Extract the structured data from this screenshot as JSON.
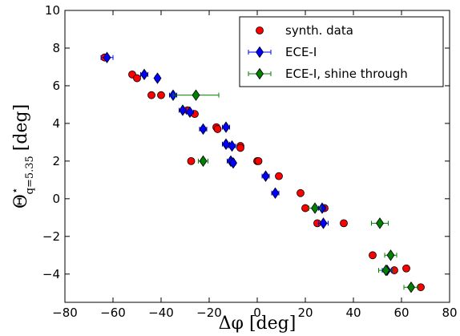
{
  "chart_data": {
    "type": "scatter",
    "xlabel": "Δφ [deg]",
    "ylabel": "Θ⋆ q=5.35 [deg]",
    "ylabel_main": "Θ",
    "ylabel_star": "⋆",
    "ylabel_sub": "q=5.35",
    "ylabel_unit": "[deg]",
    "xlim": [
      -80,
      80
    ],
    "ylim": [
      -5.5,
      10
    ],
    "xticks": [
      -80,
      -60,
      -40,
      -20,
      0,
      20,
      40,
      60,
      80
    ],
    "yticks": [
      -4,
      -2,
      0,
      2,
      4,
      6,
      8,
      10
    ],
    "xtick_labels": [
      "−80",
      "−60",
      "−40",
      "−20",
      "0",
      "20",
      "40",
      "60",
      "80"
    ],
    "ytick_labels": [
      "−4",
      "−2",
      "0",
      "2",
      "4",
      "6",
      "8",
      "10"
    ],
    "legend_position": "upper-right",
    "grid": false,
    "series": [
      {
        "name": "synth. data",
        "marker": "circle",
        "color": "#ff0000",
        "points": [
          [
            -63.5,
            7.5
          ],
          [
            -52,
            6.6
          ],
          [
            -50,
            6.4
          ],
          [
            -44,
            5.5
          ],
          [
            -40,
            5.5
          ],
          [
            -29,
            4.7
          ],
          [
            -26,
            4.5
          ],
          [
            -17,
            3.8
          ],
          [
            -16.5,
            3.7
          ],
          [
            -7,
            2.8
          ],
          [
            -7,
            2.7
          ],
          [
            0,
            2.0
          ],
          [
            0.5,
            2.0
          ],
          [
            -27.5,
            2.0
          ],
          [
            9,
            1.2
          ],
          [
            18,
            0.3
          ],
          [
            20,
            -0.5
          ],
          [
            25,
            -1.3
          ],
          [
            28,
            -0.5
          ],
          [
            36,
            -1.3
          ],
          [
            48,
            -3.0
          ],
          [
            57,
            -3.8
          ],
          [
            62,
            -3.7
          ],
          [
            68,
            -4.7
          ]
        ]
      },
      {
        "name": "ECE-I",
        "marker": "diamond",
        "color": "#0000ff",
        "points": [
          {
            "x": -62.5,
            "y": 7.5,
            "xerr": 2.5
          },
          {
            "x": -47,
            "y": 6.6,
            "xerr": 1.5
          },
          {
            "x": -41.5,
            "y": 6.4,
            "xerr": 1.0
          },
          {
            "x": -35,
            "y": 5.5,
            "xerr": 1.5
          },
          {
            "x": -31,
            "y": 4.7,
            "xerr": 1.5
          },
          {
            "x": -28,
            "y": 4.6,
            "xerr": 1.5
          },
          {
            "x": -22.5,
            "y": 3.7,
            "xerr": 1.5
          },
          {
            "x": -13,
            "y": 3.8,
            "xerr": 1.5
          },
          {
            "x": -13,
            "y": 2.9,
            "xerr": 1.5
          },
          {
            "x": -10.5,
            "y": 2.8,
            "xerr": 1.5
          },
          {
            "x": -11,
            "y": 2.0,
            "xerr": 1.5
          },
          {
            "x": -10,
            "y": 1.9,
            "xerr": 1.0
          },
          {
            "x": 3.5,
            "y": 1.2,
            "xerr": 1.5
          },
          {
            "x": 7.5,
            "y": 0.3,
            "xerr": 1.5
          },
          {
            "x": 27,
            "y": -0.5,
            "xerr": 1.5
          },
          {
            "x": 27.5,
            "y": -1.3,
            "xerr": 2.0
          },
          {
            "x": 54,
            "y": -3.8,
            "xerr": 2.0
          }
        ]
      },
      {
        "name": "ECE-I, shine through",
        "marker": "diamond",
        "color": "#008000",
        "points": [
          {
            "x": -25.5,
            "y": 5.5,
            "xerr": 9.5
          },
          {
            "x": -22.5,
            "y": 2.0,
            "xerr": 2.0
          },
          {
            "x": 24,
            "y": -0.5,
            "xerr": 2.5
          },
          {
            "x": 51,
            "y": -1.3,
            "xerr": 3.5
          },
          {
            "x": 55.5,
            "y": -3.0,
            "xerr": 2.5
          },
          {
            "x": 53.5,
            "y": -3.8,
            "xerr": 3.0
          },
          {
            "x": 64,
            "y": -4.7,
            "xerr": 3.0
          }
        ]
      }
    ]
  }
}
